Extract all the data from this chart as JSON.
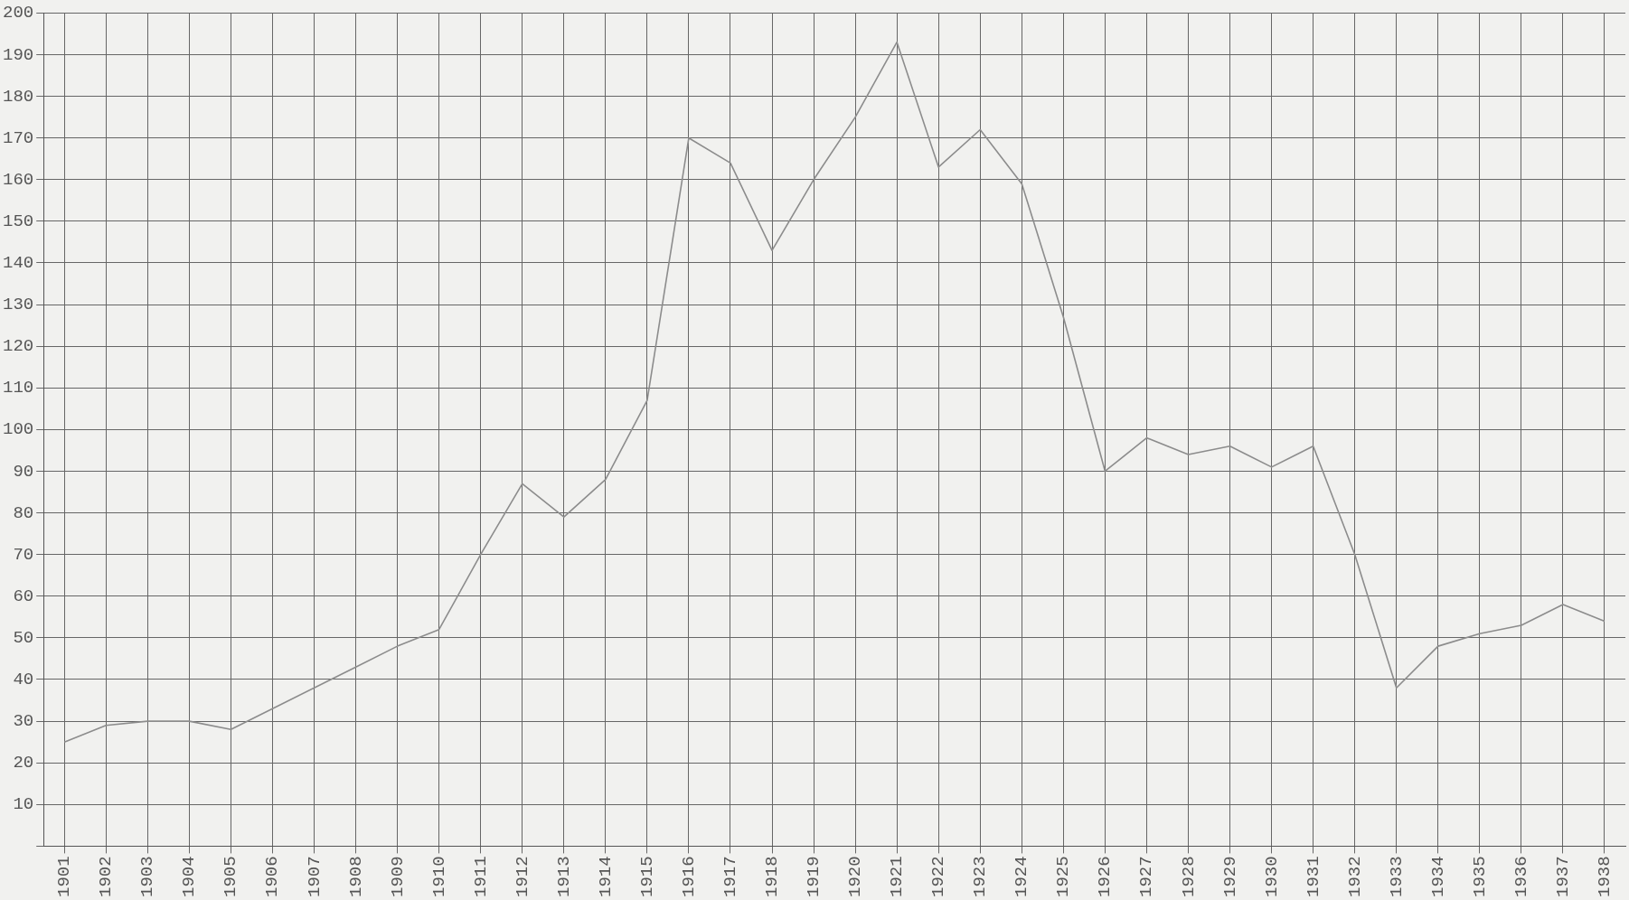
{
  "chart_data": {
    "type": "line",
    "categories": [
      "1901",
      "1902",
      "1903",
      "1904",
      "1905",
      "1906",
      "1907",
      "1908",
      "1909",
      "1910",
      "1911",
      "1912",
      "1913",
      "1914",
      "1915",
      "1916",
      "1917",
      "1918",
      "1919",
      "1920",
      "1921",
      "1922",
      "1923",
      "1924",
      "1925",
      "1926",
      "1927",
      "1928",
      "1929",
      "1930",
      "1931",
      "1932",
      "1933",
      "1934",
      "1935",
      "1936",
      "1937",
      "1938"
    ],
    "series": [
      {
        "color": "#8c8c8c",
        "values": [
          25,
          29,
          30,
          30,
          28,
          33,
          38,
          43,
          48,
          52,
          70,
          87,
          79,
          88,
          107,
          170,
          164,
          143,
          160,
          175,
          193,
          163,
          172,
          159,
          127,
          90,
          98,
          94,
          96,
          91,
          96,
          70,
          38,
          48,
          51,
          53,
          58,
          54
        ]
      }
    ],
    "ylim": [
      0,
      200
    ],
    "yticks": [
      {
        "value": 0,
        "label": null
      },
      10,
      20,
      30,
      40,
      50,
      60,
      70,
      80,
      90,
      100,
      110,
      120,
      130,
      140,
      150,
      160,
      170,
      180,
      190,
      200
    ],
    "grid": true,
    "marker": "none",
    "line_style": "solid",
    "legend": false
  }
}
